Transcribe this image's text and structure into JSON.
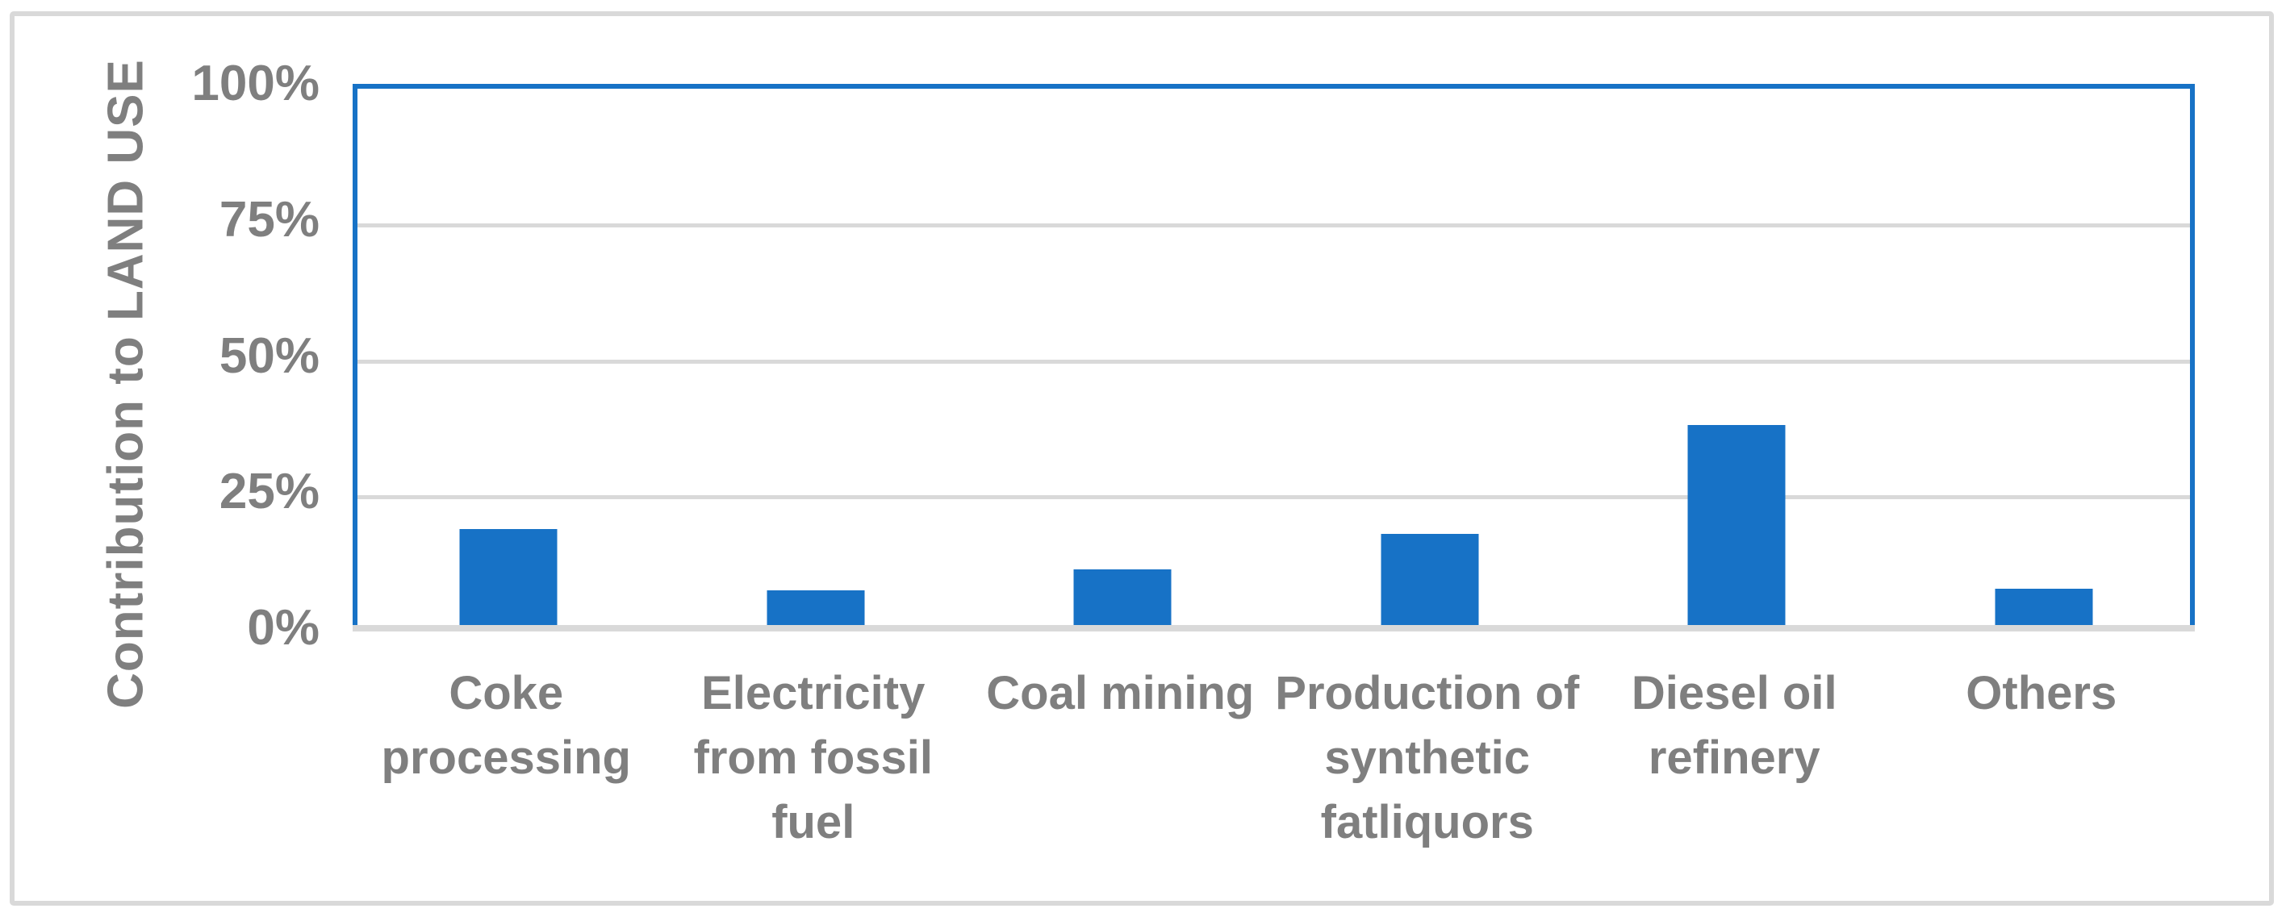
{
  "figure": {
    "background_color": "#FFFFFF",
    "frame_border_color": "#D9D9D9"
  },
  "chart_data": {
    "type": "bar",
    "title": "",
    "ylabel": "Contribution to LAND USE",
    "xlabel": "",
    "categories": [
      "Coke processing",
      "Electricity from fossil fuel",
      "Coal mining",
      "Production of synthetic fatliquors",
      "Diesel oil refinery",
      "Others"
    ],
    "category_label_lines": [
      "Coke\nprocessing",
      "Electricity\nfrom fossil\nfuel",
      "Coal mining",
      "Production of\nsynthetic\nfatliquors",
      "Diesel oil\nrefinery",
      "Others"
    ],
    "values": [
      18.2,
      6.9,
      10.8,
      17.4,
      37.4,
      7.2
    ],
    "unit": "%",
    "ylim": [
      0,
      100
    ],
    "y_ticks": [
      {
        "value": 100,
        "label": "100%"
      },
      {
        "value": 75,
        "label": "75%"
      },
      {
        "value": 50,
        "label": "50%"
      },
      {
        "value": 25,
        "label": "25%"
      },
      {
        "value": 0,
        "label": "0%"
      }
    ],
    "gridlines_at": [
      75,
      50,
      25
    ],
    "grid": true,
    "legend": false,
    "bar_color": "#1772C6",
    "plot_border_color": "#1772C6",
    "gridline_color": "#D9D9D9",
    "axis_line_color": "#D9D9D9",
    "text_color": "#7F7F7F"
  }
}
